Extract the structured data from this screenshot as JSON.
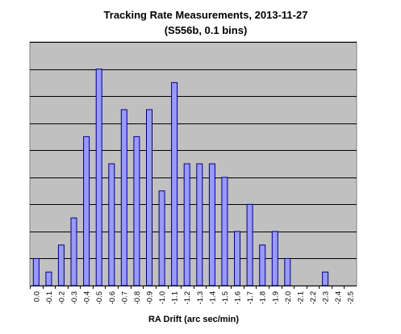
{
  "chart_data": {
    "type": "bar",
    "title": "Tracking Rate Measurements, 2013-11-27",
    "subtitle": "(S556b,  0.1 bins)",
    "xlabel": "RA Drift (arc sec/min)",
    "ylabel": "",
    "categories": [
      "0.0",
      "-0.1",
      "-0.2",
      "-0.3",
      "-0.4",
      "-0.5",
      "-0.6",
      "-0.7",
      "-0.8",
      "-0.9",
      "-1.0",
      "-1.1",
      "-1.2",
      "-1.3",
      "-1.4",
      "-1.5",
      "-1.6",
      "-1.7",
      "-1.8",
      "-1.9",
      "-2.0",
      "-2.1",
      "-2.2",
      "-2.3",
      "-2.4",
      "-2.5"
    ],
    "values": [
      2,
      1,
      3,
      5,
      11,
      16,
      9,
      13,
      11,
      13,
      7,
      15,
      9,
      9,
      9,
      8,
      4,
      6,
      3,
      4,
      2,
      0,
      0,
      1,
      0,
      0
    ],
    "ylim": [
      0,
      18
    ],
    "gridlines": [
      2,
      4,
      6,
      8,
      10,
      12,
      14,
      16,
      18
    ],
    "grid": true,
    "legend": "none",
    "colors": {
      "plot_background": "#c0c0c0",
      "bar_fill": "#9999ff",
      "bar_stroke": "#000080",
      "grid": "#000000"
    }
  }
}
